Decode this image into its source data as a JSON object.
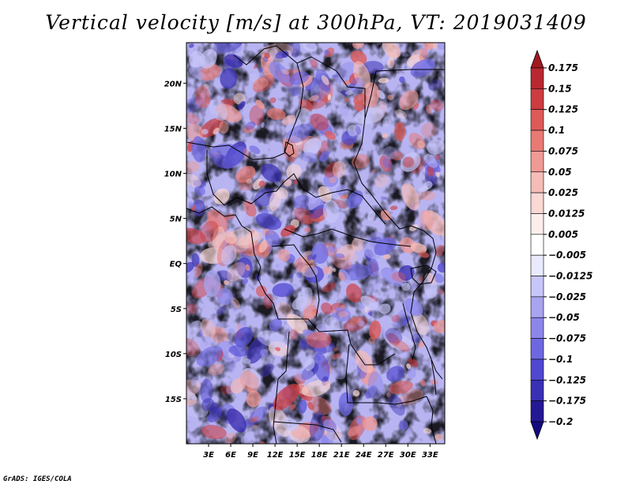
{
  "title": "Vertical velocity [m/s] at 300hPa, VT: 2019031409",
  "credit": "GrADS: IGES/COLA",
  "chart_data": {
    "type": "heatmap",
    "title": "Vertical velocity [m/s] at 300hPa, VT: 2019031409",
    "variable": "Vertical velocity",
    "units": "m/s",
    "level": "300hPa",
    "valid_time": "2019031409",
    "xlabel": "",
    "ylabel": "",
    "xlim": [
      0,
      35
    ],
    "ylim": [
      -20,
      24.5
    ],
    "x_ticks": [
      {
        "value": 3,
        "label": "3E"
      },
      {
        "value": 6,
        "label": "6E"
      },
      {
        "value": 9,
        "label": "9E"
      },
      {
        "value": 12,
        "label": "12E"
      },
      {
        "value": 15,
        "label": "15E"
      },
      {
        "value": 18,
        "label": "18E"
      },
      {
        "value": 21,
        "label": "21E"
      },
      {
        "value": 24,
        "label": "24E"
      },
      {
        "value": 27,
        "label": "27E"
      },
      {
        "value": 30,
        "label": "30E"
      },
      {
        "value": 33,
        "label": "33E"
      }
    ],
    "y_ticks": [
      {
        "value": 20,
        "label": "20N"
      },
      {
        "value": 15,
        "label": "15N"
      },
      {
        "value": 10,
        "label": "10N"
      },
      {
        "value": 5,
        "label": "5N"
      },
      {
        "value": 0,
        "label": "EQ"
      },
      {
        "value": -5,
        "label": "5S"
      },
      {
        "value": -10,
        "label": "10S"
      },
      {
        "value": -15,
        "label": "15S"
      }
    ],
    "colorbar": {
      "levels": [
        "0.175",
        "0.15",
        "0.125",
        "0.1",
        "0.075",
        "0.05",
        "0.025",
        "0.0125",
        "0.005",
        "−0.005",
        "−0.0125",
        "−0.025",
        "−0.05",
        "−0.075",
        "−0.1",
        "−0.125",
        "−0.175",
        "−0.2"
      ],
      "colors": [
        "#a01a20",
        "#b82830",
        "#cc3c40",
        "#dc5a58",
        "#e87a74",
        "#f09a94",
        "#f6bcb6",
        "#fad8d4",
        "#fdeeec",
        "#ffffff",
        "#eaeaff",
        "#c8c6f8",
        "#a9a4f0",
        "#8c86ea",
        "#6e68e0",
        "#5048d0",
        "#3a30b4",
        "#241894",
        "#140a80"
      ]
    }
  }
}
